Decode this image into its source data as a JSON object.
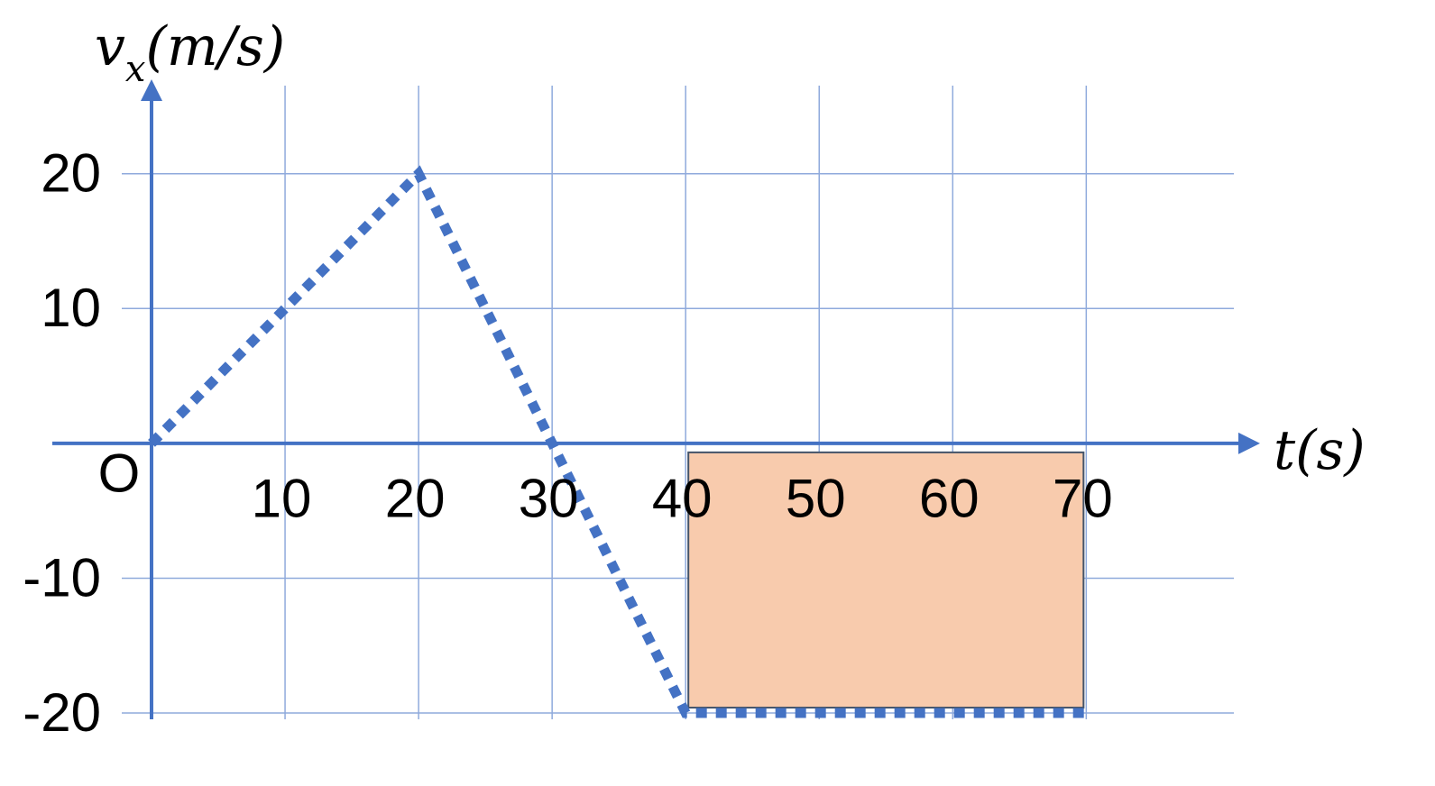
{
  "chart_data": {
    "type": "line",
    "x": [
      0,
      20,
      30,
      40,
      70
    ],
    "values": [
      0,
      20,
      0,
      -20,
      -20
    ],
    "color": "#4472c4",
    "line_style": "dotted",
    "xlim": [
      0,
      82
    ],
    "ylim": [
      -21,
      27
    ],
    "xticks": [
      10,
      20,
      30,
      40,
      50,
      60,
      70
    ],
    "yticks": [
      -20,
      -10,
      10,
      20
    ],
    "grid": true,
    "grid_color": "#8faadc",
    "origin_label": "O",
    "xlabel": "t(s)",
    "ylabel": {
      "main": "v",
      "sub": "x",
      "unit": "(m/s)"
    },
    "shaded_region": {
      "x": [
        40,
        70
      ],
      "y": [
        0,
        -20
      ],
      "color": "#f8cbad"
    }
  }
}
